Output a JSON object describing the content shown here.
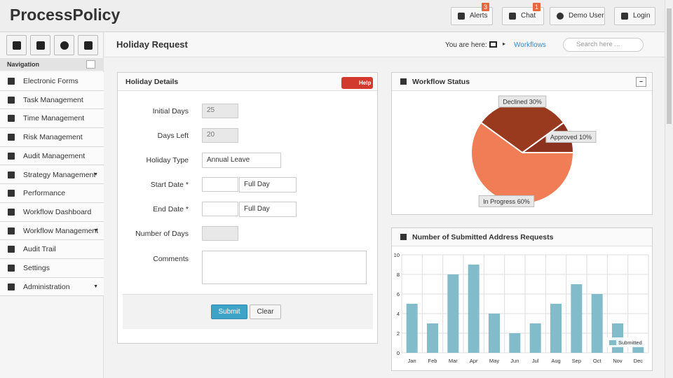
{
  "header": {
    "brand": "ProcessPolicy",
    "buttons": [
      {
        "label": "Alerts",
        "badge": 3
      },
      {
        "label": "Chat",
        "badge": 1
      },
      {
        "label": "Demo User"
      },
      {
        "label": "Login"
      }
    ]
  },
  "navigation": {
    "title": "Navigation",
    "items": [
      "Electronic Forms",
      "Task Management",
      "Time Management",
      "Risk Management",
      "Audit Management",
      "Strategy Management",
      "Performance",
      "Workflow Dashboard",
      "Workflow Management",
      "Audit Trail",
      "Settings",
      "Administration"
    ]
  },
  "page": {
    "title": "Holiday Request",
    "breadcrumb_prefix": "You are here:",
    "breadcrumb": "Workflows",
    "search_placeholder": "Search here ..."
  },
  "form": {
    "title": "Holiday Details",
    "help": "Help",
    "fields": [
      {
        "label": "Initial Days",
        "value": 25
      },
      {
        "label": "Days Left",
        "value": 20
      },
      {
        "label": "Holiday Type",
        "value": "Annual Leave"
      },
      {
        "label": "Start Date *",
        "option": "Full Day"
      },
      {
        "label": "End Date *",
        "option": "Full Day"
      },
      {
        "label": "Number of Days"
      },
      {
        "label": "Comments"
      }
    ],
    "submit": "Submit",
    "clear": "Clear"
  },
  "chart_data": [
    {
      "type": "pie",
      "title": "Workflow Status",
      "categories": [
        "Approved",
        "Declined",
        "In Progress"
      ],
      "values": [
        10,
        30,
        60
      ],
      "value_labels": [
        "10%",
        "30%",
        "60%"
      ],
      "colors": [
        "#8c3320",
        "#993a1f",
        "#f07d55"
      ]
    },
    {
      "type": "bar",
      "title": "Number of Submitted Address Requests",
      "categories": [
        "Jan",
        "Feb",
        "Mar",
        "Apr",
        "May",
        "Jun",
        "Jul",
        "Aug",
        "Sep",
        "Oct",
        "Nov",
        "Dec"
      ],
      "series": [
        {
          "name": "Submitted",
          "color": "#82bccb",
          "values": [
            5,
            3,
            8,
            9,
            4,
            2,
            3,
            5,
            7,
            6,
            3,
            1
          ]
        }
      ],
      "ylim": [
        0,
        10
      ],
      "yticks": [
        0,
        2,
        4,
        6,
        8,
        10
      ],
      "grid": true,
      "legend": "bottom-right"
    }
  ]
}
